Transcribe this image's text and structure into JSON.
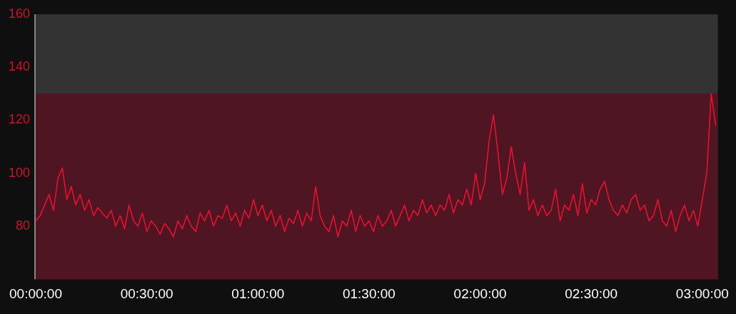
{
  "chart_data": {
    "type": "line",
    "x": [
      0,
      0.02,
      0.04,
      0.06,
      0.08,
      0.1,
      0.12,
      0.14,
      0.16,
      0.18,
      0.2,
      0.22,
      0.24,
      0.26,
      0.28,
      0.3,
      0.32,
      0.34,
      0.36,
      0.38,
      0.4,
      0.42,
      0.44,
      0.46,
      0.48,
      0.5,
      0.52,
      0.54,
      0.56,
      0.58,
      0.6,
      0.62,
      0.64,
      0.66,
      0.68,
      0.7,
      0.72,
      0.74,
      0.76,
      0.78,
      0.8,
      0.82,
      0.84,
      0.86,
      0.88,
      0.9,
      0.92,
      0.94,
      0.96,
      0.98,
      1,
      1.02,
      1.04,
      1.06,
      1.08,
      1.1,
      1.12,
      1.14,
      1.16,
      1.18,
      1.2,
      1.22,
      1.24,
      1.26,
      1.28,
      1.3,
      1.32,
      1.34,
      1.36,
      1.38,
      1.4,
      1.42,
      1.44,
      1.46,
      1.48,
      1.5,
      1.52,
      1.54,
      1.56,
      1.58,
      1.6,
      1.62,
      1.64,
      1.66,
      1.68,
      1.7,
      1.72,
      1.74,
      1.76,
      1.78,
      1.8,
      1.82,
      1.84,
      1.86,
      1.88,
      1.9,
      1.92,
      1.94,
      1.96,
      1.98,
      2,
      2.02,
      2.04,
      2.06,
      2.08,
      2.1,
      2.12,
      2.14,
      2.16,
      2.18,
      2.2,
      2.22,
      2.24,
      2.26,
      2.28,
      2.3,
      2.32,
      2.34,
      2.36,
      2.38,
      2.4,
      2.42,
      2.44,
      2.46,
      2.48,
      2.5,
      2.52,
      2.54,
      2.56,
      2.58,
      2.6,
      2.62,
      2.64,
      2.66,
      2.68,
      2.7,
      2.72,
      2.74,
      2.76,
      2.78,
      2.8,
      2.82,
      2.84,
      2.86,
      2.88,
      2.9,
      2.92,
      2.94,
      2.96,
      2.98,
      3,
      3.02,
      3.04,
      3.06
    ],
    "series": [
      {
        "color": "#e8112d",
        "values": [
          82,
          84,
          88,
          92,
          86,
          98,
          102,
          90,
          95,
          88,
          92,
          86,
          90,
          84,
          87,
          85,
          83,
          86,
          80,
          84,
          79,
          88,
          82,
          80,
          85,
          78,
          82,
          80,
          77,
          81,
          79,
          76,
          82,
          79,
          84,
          80,
          78,
          85,
          82,
          86,
          80,
          84,
          83,
          88,
          82,
          85,
          80,
          86,
          83,
          90,
          84,
          88,
          82,
          86,
          80,
          84,
          78,
          83,
          81,
          86,
          80,
          85,
          82,
          95,
          84,
          80,
          78,
          84,
          76,
          82,
          80,
          86,
          78,
          84,
          80,
          82,
          78,
          84,
          80,
          82,
          86,
          80,
          84,
          88,
          82,
          86,
          84,
          90,
          85,
          88,
          84,
          88,
          86,
          92,
          85,
          90,
          88,
          94,
          88,
          100,
          90,
          96,
          112,
          122,
          108,
          92,
          98,
          110,
          100,
          92,
          104,
          86,
          90,
          84,
          88,
          84,
          86,
          94,
          82,
          88,
          86,
          92,
          84,
          96,
          85,
          90,
          88,
          94,
          97,
          90,
          86,
          84,
          88,
          85,
          90,
          92,
          86,
          88,
          82,
          84,
          90,
          82,
          80,
          86,
          78,
          84,
          88,
          82,
          86,
          80,
          90,
          100,
          130,
          118
        ]
      }
    ],
    "xlim": [
      0,
      3.07
    ],
    "xticks": [
      {
        "value": 0,
        "label": "00:00:00"
      },
      {
        "value": 0.5,
        "label": "00:30:00"
      },
      {
        "value": 1,
        "label": "01:00:00"
      },
      {
        "value": 1.5,
        "label": "01:30:00"
      },
      {
        "value": 2,
        "label": "02:00:00"
      },
      {
        "value": 2.5,
        "label": "02:30:00"
      },
      {
        "value": 3,
        "label": "03:00:00"
      }
    ],
    "ylim": [
      60,
      160
    ],
    "yticks": [
      80,
      100,
      120,
      140,
      160
    ],
    "bands": [
      {
        "axis": "y",
        "from": 60,
        "to": 130,
        "color": "#4f1523"
      }
    ],
    "grid": false,
    "legend": false,
    "marker": "none",
    "line_style": "solid"
  }
}
